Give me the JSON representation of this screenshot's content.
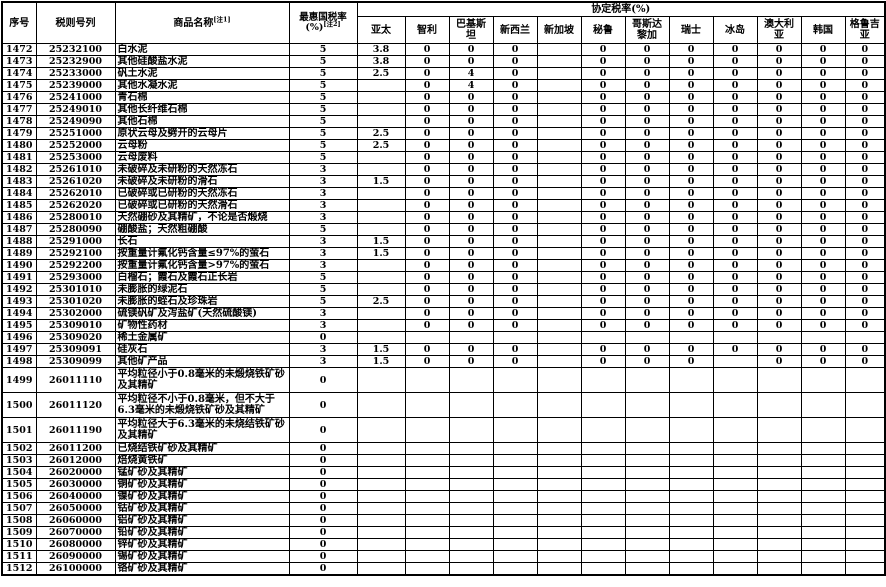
{
  "header": {
    "col_no": "序号",
    "col_code": "税则号列",
    "col_name": "商品名称",
    "col_name_note": "[注1]",
    "col_mfn": "最惠国税率",
    "col_mfn_unit": "(%)",
    "col_mfn_note": "[注2]",
    "agreement_title": "协定税率(%)",
    "countries": [
      "亚太",
      "智利",
      "巴基斯坦",
      "新西兰",
      "新加坡",
      "秘鲁",
      "哥斯达黎加",
      "瑞士",
      "冰岛",
      "澳大利亚",
      "韩国",
      "格鲁吉亚"
    ]
  },
  "rows": [
    {
      "no": "1472",
      "code": "25232100",
      "name": "白水泥",
      "mfn": "5",
      "rates": [
        "3.8",
        "0",
        "0",
        "0",
        "",
        "0",
        "0",
        "0",
        "0",
        "0",
        "0",
        "0"
      ]
    },
    {
      "no": "1473",
      "code": "25232900",
      "name": "其他硅酸盐水泥",
      "mfn": "5",
      "rates": [
        "3.8",
        "0",
        "0",
        "0",
        "",
        "0",
        "0",
        "0",
        "0",
        "0",
        "0",
        "0"
      ]
    },
    {
      "no": "1474",
      "code": "25233000",
      "name": "矾土水泥",
      "mfn": "5",
      "rates": [
        "2.5",
        "0",
        "4",
        "0",
        "",
        "0",
        "0",
        "0",
        "0",
        "0",
        "0",
        "0"
      ]
    },
    {
      "no": "1475",
      "code": "25239000",
      "name": "其他水凝水泥",
      "mfn": "5",
      "rates": [
        "",
        "0",
        "4",
        "0",
        "",
        "0",
        "0",
        "0",
        "0",
        "0",
        "0",
        "0"
      ]
    },
    {
      "no": "1476",
      "code": "25241000",
      "name": "青石棉",
      "mfn": "5",
      "rates": [
        "",
        "0",
        "0",
        "0",
        "",
        "0",
        "0",
        "0",
        "0",
        "0",
        "0",
        "0"
      ]
    },
    {
      "no": "1477",
      "code": "25249010",
      "name": "其他长纤维石棉",
      "mfn": "5",
      "rates": [
        "",
        "0",
        "0",
        "0",
        "",
        "0",
        "0",
        "0",
        "0",
        "0",
        "0",
        "0"
      ]
    },
    {
      "no": "1478",
      "code": "25249090",
      "name": "其他石棉",
      "mfn": "5",
      "rates": [
        "",
        "0",
        "0",
        "0",
        "",
        "0",
        "0",
        "0",
        "0",
        "0",
        "0",
        "0"
      ]
    },
    {
      "no": "1479",
      "code": "25251000",
      "name": "原状云母及劈开的云母片",
      "mfn": "5",
      "rates": [
        "2.5",
        "0",
        "0",
        "0",
        "",
        "0",
        "0",
        "0",
        "0",
        "0",
        "0",
        "0"
      ]
    },
    {
      "no": "1480",
      "code": "25252000",
      "name": "云母粉",
      "mfn": "5",
      "rates": [
        "2.5",
        "0",
        "0",
        "0",
        "",
        "0",
        "0",
        "0",
        "0",
        "0",
        "0",
        "0"
      ]
    },
    {
      "no": "1481",
      "code": "25253000",
      "name": "云母废料",
      "mfn": "5",
      "rates": [
        "",
        "0",
        "0",
        "0",
        "",
        "0",
        "0",
        "0",
        "0",
        "0",
        "0",
        "0"
      ]
    },
    {
      "no": "1482",
      "code": "25261010",
      "name": "未破碎及未研粉的天然冻石",
      "mfn": "3",
      "rates": [
        "",
        "0",
        "0",
        "0",
        "",
        "0",
        "0",
        "0",
        "0",
        "0",
        "0",
        "0"
      ]
    },
    {
      "no": "1483",
      "code": "25261020",
      "name": "未破碎及未研粉的滑石",
      "mfn": "3",
      "rates": [
        "1.5",
        "0",
        "0",
        "0",
        "",
        "0",
        "0",
        "0",
        "0",
        "0",
        "0",
        "0"
      ]
    },
    {
      "no": "1484",
      "code": "25262010",
      "name": "已破碎或已研粉的天然冻石",
      "mfn": "3",
      "rates": [
        "",
        "0",
        "0",
        "0",
        "",
        "0",
        "0",
        "0",
        "0",
        "0",
        "0",
        "0"
      ]
    },
    {
      "no": "1485",
      "code": "25262020",
      "name": "已破碎或已研粉的天然滑石",
      "mfn": "3",
      "rates": [
        "",
        "0",
        "0",
        "0",
        "",
        "0",
        "0",
        "0",
        "0",
        "0",
        "0",
        "0"
      ]
    },
    {
      "no": "1486",
      "code": "25280010",
      "name": "天然硼砂及其精矿，不论是否煅烧",
      "mfn": "3",
      "rates": [
        "",
        "0",
        "0",
        "0",
        "",
        "0",
        "0",
        "0",
        "0",
        "0",
        "0",
        "0"
      ]
    },
    {
      "no": "1487",
      "code": "25280090",
      "name": "硼酸盐；天然粗硼酸",
      "mfn": "5",
      "rates": [
        "",
        "0",
        "0",
        "0",
        "",
        "0",
        "0",
        "0",
        "0",
        "0",
        "0",
        "0"
      ]
    },
    {
      "no": "1488",
      "code": "25291000",
      "name": "长石",
      "mfn": "3",
      "rates": [
        "1.5",
        "0",
        "0",
        "0",
        "",
        "0",
        "0",
        "0",
        "0",
        "0",
        "0",
        "0"
      ]
    },
    {
      "no": "1489",
      "code": "25292100",
      "name": "按重量计氟化钙含量≤97%的萤石",
      "mfn": "3",
      "rates": [
        "1.5",
        "0",
        "0",
        "0",
        "",
        "0",
        "0",
        "0",
        "0",
        "0",
        "0",
        "0"
      ]
    },
    {
      "no": "1490",
      "code": "25292200",
      "name": "按重量计氟化钙含量>97%的萤石",
      "mfn": "3",
      "rates": [
        "",
        "0",
        "0",
        "0",
        "",
        "0",
        "0",
        "0",
        "0",
        "0",
        "0",
        "0"
      ]
    },
    {
      "no": "1491",
      "code": "25293000",
      "name": "白榴石；霞石及霞石正长岩",
      "mfn": "5",
      "rates": [
        "",
        "0",
        "0",
        "0",
        "",
        "0",
        "0",
        "0",
        "0",
        "0",
        "0",
        "0"
      ]
    },
    {
      "no": "1492",
      "code": "25301010",
      "name": "未膨胀的绿泥石",
      "mfn": "5",
      "rates": [
        "",
        "0",
        "0",
        "0",
        "",
        "0",
        "0",
        "0",
        "0",
        "0",
        "0",
        "0"
      ]
    },
    {
      "no": "1493",
      "code": "25301020",
      "name": "未膨胀的蛭石及珍珠岩",
      "mfn": "5",
      "rates": [
        "2.5",
        "0",
        "0",
        "0",
        "",
        "0",
        "0",
        "0",
        "0",
        "0",
        "0",
        "0"
      ]
    },
    {
      "no": "1494",
      "code": "25302000",
      "name": "硫镁矾矿及泻盐矿(天然硫酸镁)",
      "mfn": "3",
      "rates": [
        "",
        "0",
        "0",
        "0",
        "",
        "0",
        "0",
        "0",
        "0",
        "0",
        "0",
        "0"
      ]
    },
    {
      "no": "1495",
      "code": "25309010",
      "name": "矿物性药材",
      "mfn": "3",
      "rates": [
        "",
        "0",
        "0",
        "0",
        "",
        "0",
        "0",
        "0",
        "0",
        "0",
        "0",
        "0"
      ]
    },
    {
      "no": "1496",
      "code": "25309020",
      "name": "稀土金属矿",
      "mfn": "0",
      "rates": [
        "",
        "",
        "",
        "",
        "",
        "",
        "",
        "",
        "",
        "",
        "",
        ""
      ]
    },
    {
      "no": "1497",
      "code": "25309091",
      "name": "硅灰石",
      "mfn": "3",
      "rates": [
        "1.5",
        "0",
        "0",
        "0",
        "",
        "0",
        "0",
        "0",
        "0",
        "0",
        "0",
        "0"
      ]
    },
    {
      "no": "1498",
      "code": "25309099",
      "name": "其他矿产品",
      "mfn": "3",
      "rates": [
        "1.5",
        "0",
        "0",
        "0",
        "",
        "0",
        "0",
        "0",
        "",
        "0",
        "0",
        "0"
      ]
    },
    {
      "no": "1499",
      "code": "26011110",
      "name": "平均粒径小于0.8毫米的未煅烧铁矿砂及其精矿",
      "mfn": "0",
      "tall": true,
      "rates": [
        "",
        "",
        "",
        "",
        "",
        "",
        "",
        "",
        "",
        "",
        "",
        ""
      ]
    },
    {
      "no": "1500",
      "code": "26011120",
      "name": "平均粒径不小于0.8毫米，但不大于6.3毫米的未煅烧铁矿砂及其精矿",
      "mfn": "0",
      "tall": true,
      "rates": [
        "",
        "",
        "",
        "",
        "",
        "",
        "",
        "",
        "",
        "",
        "",
        ""
      ]
    },
    {
      "no": "1501",
      "code": "26011190",
      "name": "平均粒径大于6.3毫米的未烧结铁矿砂及其精矿",
      "mfn": "0",
      "tall": true,
      "rates": [
        "",
        "",
        "",
        "",
        "",
        "",
        "",
        "",
        "",
        "",
        "",
        ""
      ]
    },
    {
      "no": "1502",
      "code": "26011200",
      "name": "已烧结铁矿砂及其精矿",
      "mfn": "0",
      "rates": [
        "",
        "",
        "",
        "",
        "",
        "",
        "",
        "",
        "",
        "",
        "",
        ""
      ]
    },
    {
      "no": "1503",
      "code": "26012000",
      "name": "焙烧黄铁矿",
      "mfn": "0",
      "rates": [
        "",
        "",
        "",
        "",
        "",
        "",
        "",
        "",
        "",
        "",
        "",
        ""
      ]
    },
    {
      "no": "1504",
      "code": "26020000",
      "name": "锰矿砂及其精矿",
      "mfn": "0",
      "rates": [
        "",
        "",
        "",
        "",
        "",
        "",
        "",
        "",
        "",
        "",
        "",
        ""
      ]
    },
    {
      "no": "1505",
      "code": "26030000",
      "name": "铜矿砂及其精矿",
      "mfn": "0",
      "rates": [
        "",
        "",
        "",
        "",
        "",
        "",
        "",
        "",
        "",
        "",
        "",
        ""
      ]
    },
    {
      "no": "1506",
      "code": "26040000",
      "name": "镍矿砂及其精矿",
      "mfn": "0",
      "rates": [
        "",
        "",
        "",
        "",
        "",
        "",
        "",
        "",
        "",
        "",
        "",
        ""
      ]
    },
    {
      "no": "1507",
      "code": "26050000",
      "name": "钴矿砂及其精矿",
      "mfn": "0",
      "rates": [
        "",
        "",
        "",
        "",
        "",
        "",
        "",
        "",
        "",
        "",
        "",
        ""
      ]
    },
    {
      "no": "1508",
      "code": "26060000",
      "name": "铝矿砂及其精矿",
      "mfn": "0",
      "rates": [
        "",
        "",
        "",
        "",
        "",
        "",
        "",
        "",
        "",
        "",
        "",
        ""
      ]
    },
    {
      "no": "1509",
      "code": "26070000",
      "name": "铅矿砂及其精矿",
      "mfn": "0",
      "rates": [
        "",
        "",
        "",
        "",
        "",
        "",
        "",
        "",
        "",
        "",
        "",
        ""
      ]
    },
    {
      "no": "1510",
      "code": "26080000",
      "name": "锌矿砂及其精矿",
      "mfn": "0",
      "rates": [
        "",
        "",
        "",
        "",
        "",
        "",
        "",
        "",
        "",
        "",
        "",
        ""
      ]
    },
    {
      "no": "1511",
      "code": "26090000",
      "name": "锡矿砂及其精矿",
      "mfn": "0",
      "rates": [
        "",
        "",
        "",
        "",
        "",
        "",
        "",
        "",
        "",
        "",
        "",
        ""
      ]
    },
    {
      "no": "1512",
      "code": "26100000",
      "name": "铬矿砂及其精矿",
      "mfn": "0",
      "rates": [
        "",
        "",
        "",
        "",
        "",
        "",
        "",
        "",
        "",
        "",
        "",
        ""
      ]
    }
  ]
}
